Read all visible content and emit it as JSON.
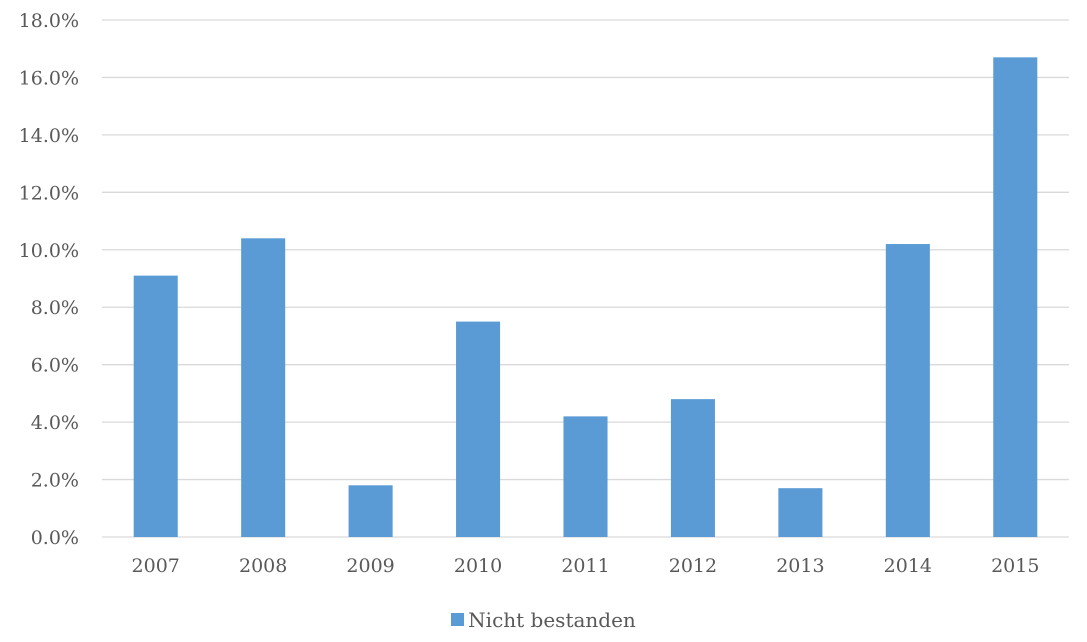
{
  "chart_data": {
    "type": "bar",
    "categories": [
      "2007",
      "2008",
      "2009",
      "2010",
      "2011",
      "2012",
      "2013",
      "2014",
      "2015"
    ],
    "series": [
      {
        "name": "Nicht bestanden",
        "values": [
          9.1,
          10.4,
          1.8,
          7.5,
          4.2,
          4.8,
          1.7,
          10.2,
          16.7
        ],
        "color": "#5b9bd5"
      }
    ],
    "ylim": [
      0,
      18
    ],
    "yticks": [
      "0.0%",
      "2.0%",
      "4.0%",
      "6.0%",
      "8.0%",
      "10.0%",
      "12.0%",
      "14.0%",
      "16.0%",
      "18.0%"
    ],
    "ytick_values": [
      0,
      2,
      4,
      6,
      8,
      10,
      12,
      14,
      16,
      18
    ],
    "grid": true,
    "legend_position": "bottom",
    "gridline_color": "#d9d9d9"
  }
}
